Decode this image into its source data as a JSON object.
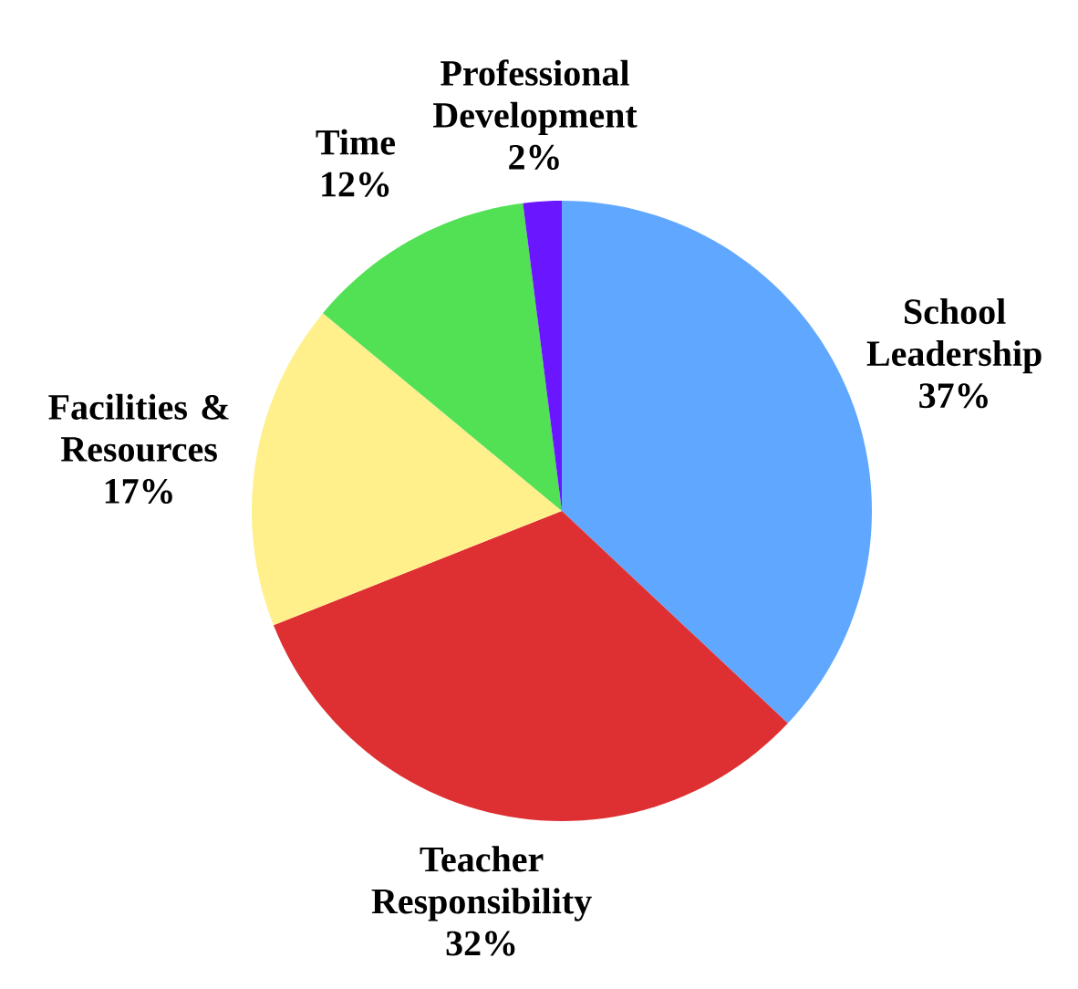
{
  "chart_data": {
    "type": "pie",
    "categories": [
      "School Leadership",
      "Teacher Responsibility",
      "Facilities & Resources",
      "Time",
      "Professional Development"
    ],
    "values": [
      37,
      32,
      17,
      12,
      2
    ],
    "value_labels": [
      "37%",
      "32%",
      "17%",
      "12%",
      "2%"
    ],
    "colors": [
      "#60a8ff",
      "#de3033",
      "#fff08c",
      "#52e055",
      "#6a16ff"
    ]
  }
}
